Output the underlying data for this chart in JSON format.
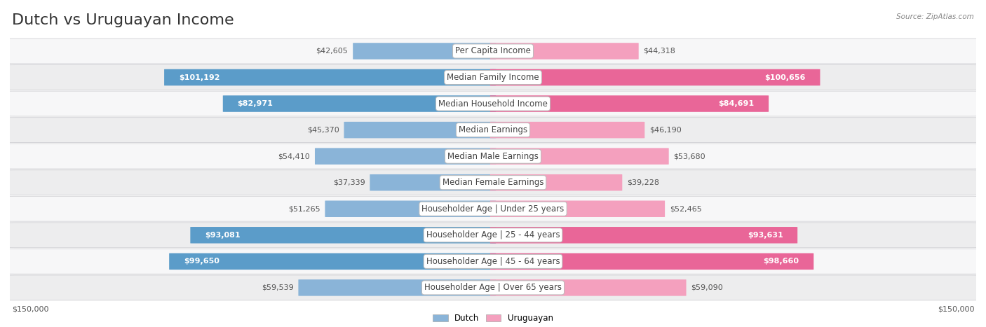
{
  "title": "Dutch vs Uruguayan Income",
  "source": "Source: ZipAtlas.com",
  "categories": [
    "Per Capita Income",
    "Median Family Income",
    "Median Household Income",
    "Median Earnings",
    "Median Male Earnings",
    "Median Female Earnings",
    "Householder Age | Under 25 years",
    "Householder Age | 25 - 44 years",
    "Householder Age | 45 - 64 years",
    "Householder Age | Over 65 years"
  ],
  "dutch_values": [
    42605,
    101192,
    82971,
    45370,
    54410,
    37339,
    51265,
    93081,
    99650,
    59539
  ],
  "uruguayan_values": [
    44318,
    100656,
    84691,
    46190,
    53680,
    39228,
    52465,
    93631,
    98660,
    59090
  ],
  "max_value": 150000,
  "dutch_color_light": "#8ab4d8",
  "dutch_color_dark": "#5b9cc9",
  "uruguayan_color_light": "#f4a0be",
  "uruguayan_color_dark": "#e96698",
  "row_bg_even": "#f7f7f8",
  "row_bg_odd": "#ededee",
  "row_border": "#d0d0d4",
  "title_fontsize": 16,
  "label_fontsize": 8.5,
  "value_fontsize": 8,
  "legend_dutch": "Dutch",
  "legend_uruguayan": "Uruguayan",
  "x_tick_label": "$150,000",
  "background_color": "#ffffff",
  "large_threshold": 75000
}
